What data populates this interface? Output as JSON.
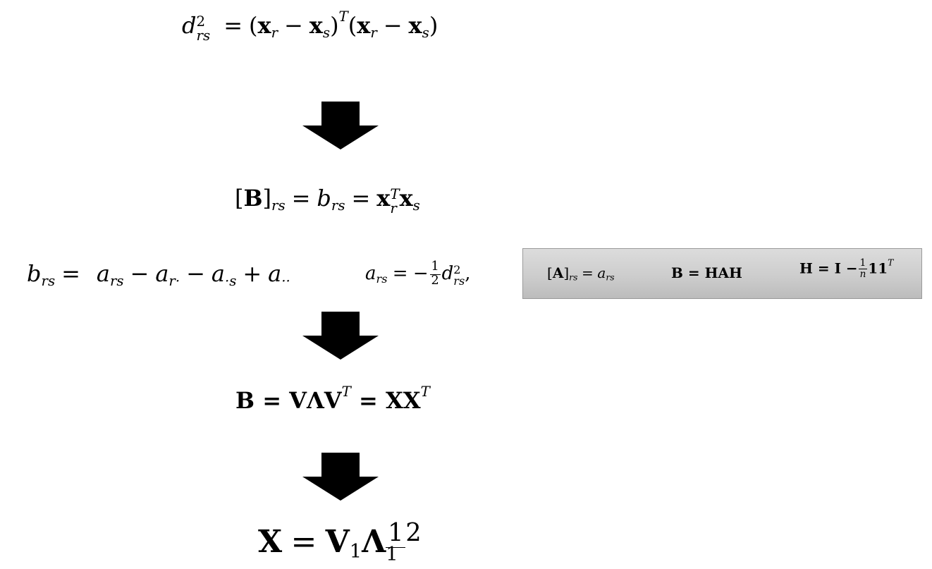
{
  "formulas": {
    "f1": {
      "lhs_base": "d",
      "lhs_sup": "2",
      "lhs_sub": "rs",
      "eq": "=",
      "lp": "(",
      "rp": ")",
      "minus": "−",
      "T": "T",
      "x": "x",
      "r": "r",
      "s": "s"
    },
    "f2": {
      "lbr": "[",
      "B": "B",
      "rbr": "]",
      "sub": "rs",
      "eq": "=",
      "b": "b",
      "x": "x",
      "T": "T",
      "r": "r",
      "s": "s"
    },
    "f3": {
      "b": "b",
      "sub_rs": "rs",
      "eq": "=",
      "a": "a",
      "sub_r_dot": "r·",
      "sub_dot_s": "·s",
      "sub_dots": "··",
      "minus": "−",
      "plus": "+"
    },
    "f3b": {
      "a": "a",
      "sub_rs": "rs",
      "eq": "=",
      "neg": "−",
      "num": "1",
      "den": "2",
      "d": "d",
      "sup": "2",
      "comma": ","
    },
    "box": {
      "eq1_lbr": "[",
      "eq1_A": "A",
      "eq1_rbr": "]",
      "eq1_sub": "rs",
      "eq1_eq": "=",
      "eq1_a": "a",
      "eq2": "B = HAH",
      "eq3_lhs": "H = I −",
      "eq3_num": "1",
      "eq3_den": "n",
      "eq3_ones": "11",
      "eq3_T": "T"
    },
    "f4": {
      "text": "B = VΛV",
      "T1": "T",
      "mid": " = XX",
      "T2": "T"
    },
    "f5": {
      "X": "X",
      "eq": "=",
      "V": "V",
      "sub1": "1",
      "L": "Λ",
      "sub2": "1",
      "exp_num": "1",
      "exp_den": "2"
    }
  }
}
